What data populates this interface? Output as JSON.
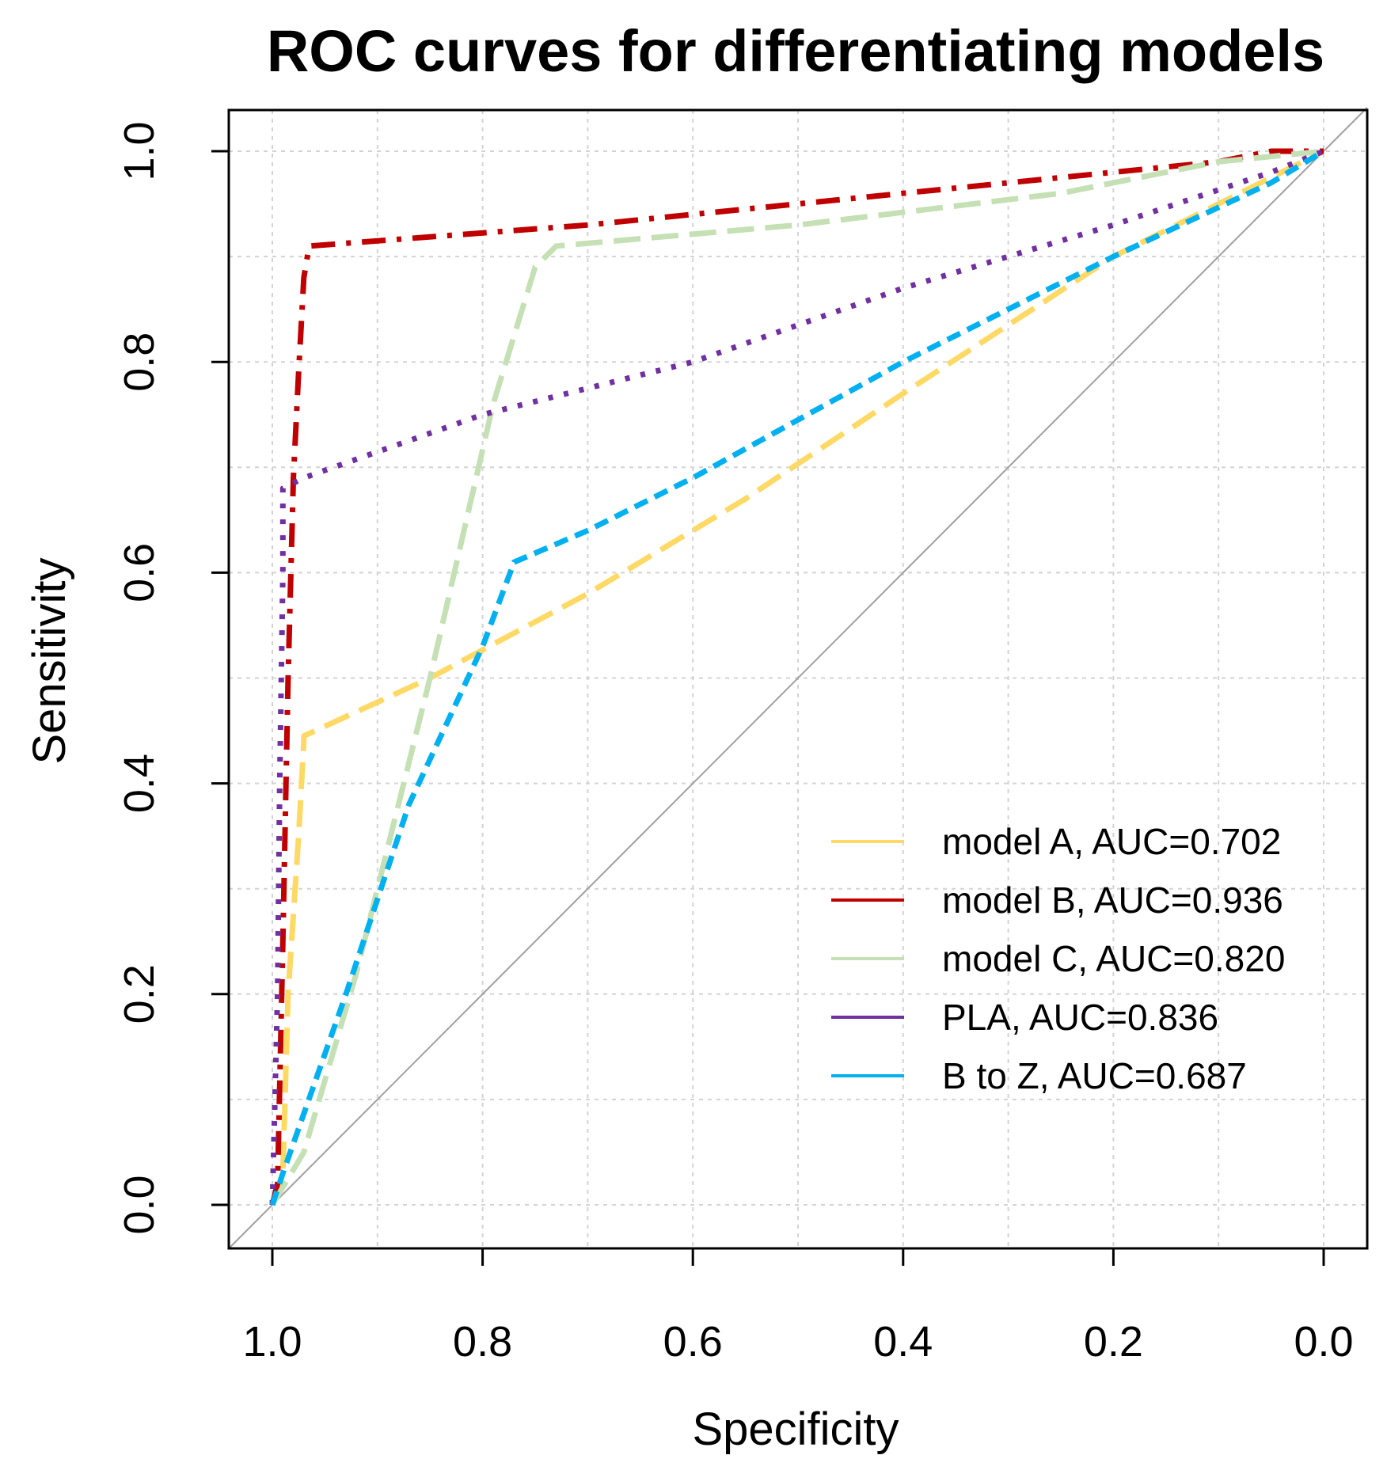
{
  "chart_data": {
    "type": "line",
    "title": "ROC curves for differentiating models",
    "xlabel": "Specificity",
    "ylabel": "Sensitivity",
    "xlim": [
      1.0,
      0.0
    ],
    "ylim": [
      0.0,
      1.0
    ],
    "grid": true,
    "legend_position": "bottom-right",
    "x_ticks": [
      "1.0",
      "0.8",
      "0.6",
      "0.4",
      "0.2",
      "0.0"
    ],
    "y_ticks": [
      "0.0",
      "0.2",
      "0.4",
      "0.6",
      "0.8",
      "1.0"
    ],
    "reference_line": {
      "from": [
        1.0,
        0.0
      ],
      "to": [
        0.0,
        1.0
      ],
      "color": "#a0a0a0"
    },
    "series": [
      {
        "name": "model A",
        "legend": "model A, AUC=0.702",
        "auc": 0.702,
        "color": "#FFD966",
        "dash": "long-dash",
        "points": [
          [
            1.0,
            0.0
          ],
          [
            0.99,
            0.03
          ],
          [
            0.985,
            0.2
          ],
          [
            0.975,
            0.35
          ],
          [
            0.97,
            0.44
          ],
          [
            0.97,
            0.445
          ],
          [
            0.85,
            0.5
          ],
          [
            0.7,
            0.58
          ],
          [
            0.55,
            0.67
          ],
          [
            0.4,
            0.77
          ],
          [
            0.2,
            0.9
          ],
          [
            0.0,
            1.0
          ]
        ]
      },
      {
        "name": "model B",
        "legend": "model B, AUC=0.936",
        "auc": 0.936,
        "color": "#C00000",
        "dash": "dash-dot",
        "points": [
          [
            1.0,
            0.0
          ],
          [
            0.995,
            0.02
          ],
          [
            0.99,
            0.25
          ],
          [
            0.985,
            0.5
          ],
          [
            0.98,
            0.69
          ],
          [
            0.975,
            0.79
          ],
          [
            0.97,
            0.88
          ],
          [
            0.965,
            0.91
          ],
          [
            0.7,
            0.93
          ],
          [
            0.4,
            0.96
          ],
          [
            0.1,
            0.99
          ],
          [
            0.05,
            1.0
          ],
          [
            0.0,
            1.0
          ]
        ]
      },
      {
        "name": "model C",
        "legend": "model C, AUC=0.820",
        "auc": 0.82,
        "color": "#C5E0B4",
        "dash": "long-dash",
        "points": [
          [
            1.0,
            0.0
          ],
          [
            0.97,
            0.05
          ],
          [
            0.92,
            0.22
          ],
          [
            0.85,
            0.5
          ],
          [
            0.79,
            0.76
          ],
          [
            0.75,
            0.89
          ],
          [
            0.73,
            0.91
          ],
          [
            0.5,
            0.93
          ],
          [
            0.25,
            0.96
          ],
          [
            0.1,
            0.99
          ],
          [
            0.0,
            1.0
          ]
        ]
      },
      {
        "name": "PLA",
        "legend": "PLA, AUC=0.836",
        "auc": 0.836,
        "color": "#7030A0",
        "dash": "dotted",
        "points": [
          [
            1.0,
            0.0
          ],
          [
            0.995,
            0.2
          ],
          [
            0.993,
            0.4
          ],
          [
            0.99,
            0.6
          ],
          [
            0.99,
            0.68
          ],
          [
            0.97,
            0.69
          ],
          [
            0.8,
            0.75
          ],
          [
            0.6,
            0.8
          ],
          [
            0.4,
            0.87
          ],
          [
            0.2,
            0.93
          ],
          [
            0.05,
            0.98
          ],
          [
            0.0,
            1.0
          ]
        ]
      },
      {
        "name": "B to Z",
        "legend": "B to Z, AUC=0.687",
        "auc": 0.687,
        "color": "#00B0F0",
        "dash": "dashed",
        "points": [
          [
            1.0,
            0.0
          ],
          [
            0.99,
            0.03
          ],
          [
            0.93,
            0.2
          ],
          [
            0.87,
            0.38
          ],
          [
            0.8,
            0.53
          ],
          [
            0.77,
            0.61
          ],
          [
            0.7,
            0.64
          ],
          [
            0.6,
            0.69
          ],
          [
            0.4,
            0.8
          ],
          [
            0.2,
            0.9
          ],
          [
            0.05,
            0.97
          ],
          [
            0.0,
            1.0
          ]
        ]
      }
    ]
  }
}
